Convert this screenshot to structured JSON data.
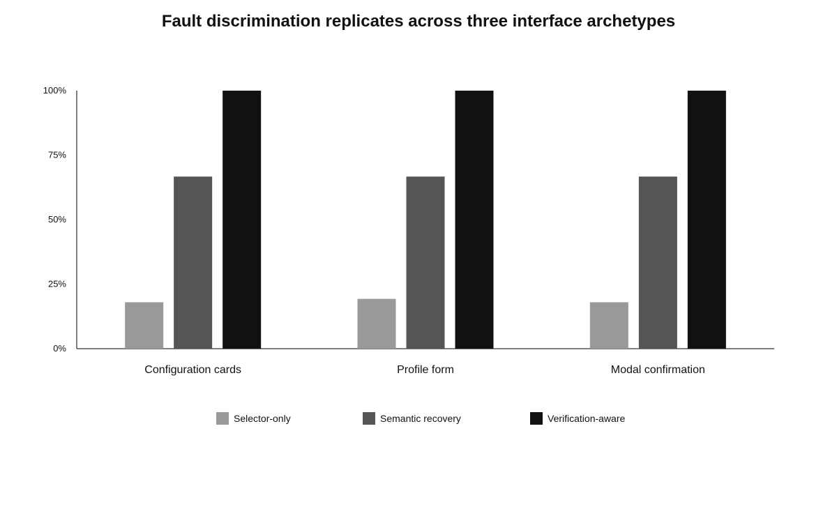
{
  "chart_data": {
    "type": "bar",
    "title": "Fault discrimination replicates across three interface archetypes",
    "xlabel": "",
    "ylabel": "",
    "categories": [
      "Configuration cards",
      "Profile form",
      "Modal confirmation"
    ],
    "series": [
      {
        "name": "Selector-only",
        "color": "#999999",
        "values": [
          18,
          19.3,
          18
        ]
      },
      {
        "name": "Semantic recovery",
        "color": "#555555",
        "values": [
          66.7,
          66.7,
          66.7
        ]
      },
      {
        "name": "Verification-aware",
        "color": "#111111",
        "values": [
          100,
          100,
          100
        ]
      }
    ],
    "ylim": [
      0,
      100
    ],
    "yticks": [
      0,
      25,
      50,
      75,
      100
    ],
    "ytick_labels": [
      "0%",
      "25%",
      "50%",
      "75%",
      "100%"
    ],
    "grid": false,
    "legend_position": "bottom-center"
  }
}
